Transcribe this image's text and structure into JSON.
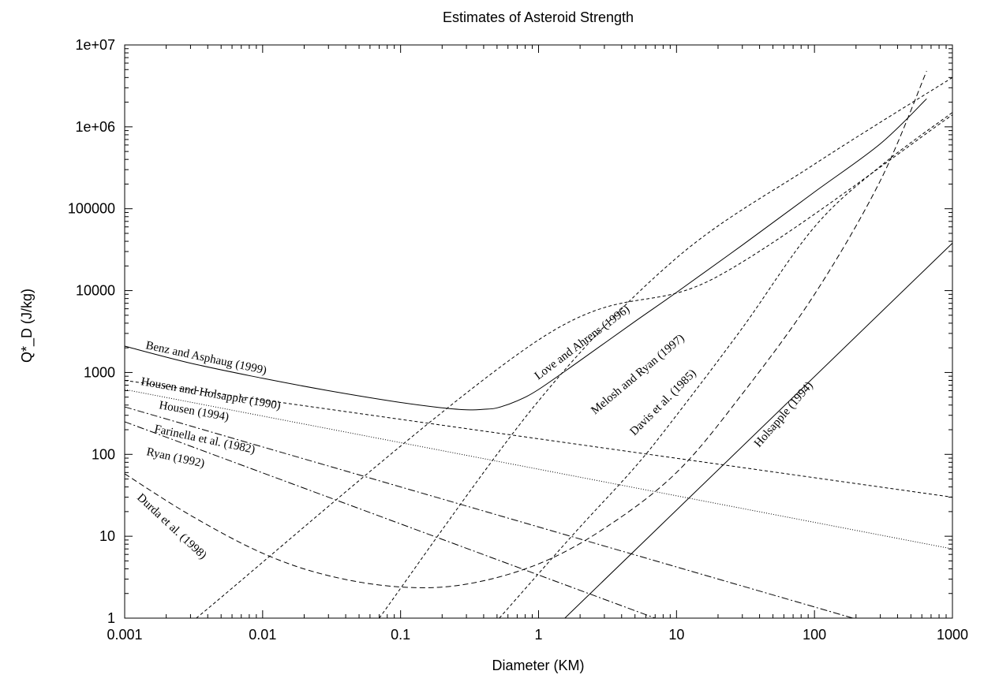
{
  "chart_data": {
    "type": "line",
    "title": "Estimates of Asteroid Strength",
    "xlabel": "Diameter (KM)",
    "ylabel": "Q*_D (J/kg)",
    "xscale": "log",
    "yscale": "log",
    "xlim": [
      0.001,
      1000
    ],
    "ylim": [
      1,
      10000000
    ],
    "x_tick_labels": [
      "0.001",
      "0.01",
      "0.1",
      "1",
      "10",
      "100",
      "1000"
    ],
    "y_tick_labels": [
      "1",
      "10",
      "100",
      "1000",
      "10000",
      "100000",
      "1e+06",
      "1e+07"
    ],
    "grid": false,
    "legend": "none",
    "series": [
      {
        "name": "Benz and Asphaug (1999)",
        "dash": "solid",
        "x": [
          0.001,
          0.003,
          0.01,
          0.03,
          0.1,
          0.2,
          0.3,
          0.4,
          0.5,
          0.7,
          1,
          2,
          5,
          10,
          30,
          100,
          300,
          650
        ],
        "y": [
          2100,
          1300,
          850,
          600,
          430,
          370,
          350,
          355,
          370,
          450,
          620,
          1400,
          4200,
          9500,
          36000,
          160000,
          620000,
          2200000
        ]
      },
      {
        "name": "Housen and Holsapple (1990)",
        "dash": "4,3",
        "x": [
          0.001,
          1000
        ],
        "y": [
          800,
          30
        ]
      },
      {
        "name": "Housen (1994)",
        "dash": "1,2",
        "x": [
          0.001,
          1000
        ],
        "y": [
          620,
          7
        ]
      },
      {
        "name": "Farinella et al. (1982)",
        "dash": "9,3,2,3",
        "x": [
          0.001,
          190
        ],
        "y": [
          380,
          1
        ]
      },
      {
        "name": "Ryan (1992)",
        "dash": "9,3,2,3",
        "x": [
          0.001,
          7
        ],
        "y": [
          250,
          1
        ]
      },
      {
        "name": "Durda et al. (1998)",
        "dash": "7,4",
        "x": [
          0.001,
          0.003,
          0.01,
          0.03,
          0.1,
          0.3,
          1,
          3,
          10,
          30,
          100,
          300,
          650
        ],
        "y": [
          58,
          18,
          6.2,
          3.3,
          2.4,
          2.6,
          4.6,
          12.5,
          60,
          550,
          9000,
          220000,
          4800000
        ]
      },
      {
        "name": "Love and Ahrens (1996)",
        "dash": "4,3",
        "x": [
          0.0033,
          1,
          20,
          1000
        ],
        "y": [
          1,
          2500,
          15000,
          1400000
        ]
      },
      {
        "name": "Melosh and Ryan (1997)",
        "dash": "4,3",
        "x": [
          0.07,
          1,
          10,
          100,
          1000
        ],
        "y": [
          1,
          450,
          25000,
          350000,
          4000000
        ]
      },
      {
        "name": "Davis et al. (1985)",
        "dash": "4,3",
        "x": [
          0.52,
          1,
          2,
          5,
          10,
          30,
          100,
          300,
          1000
        ],
        "y": [
          1,
          3.5,
          13,
          70,
          300,
          3500,
          60000,
          330000,
          1500000
        ]
      },
      {
        "name": "Holsapple (1994)",
        "dash": "solid",
        "x": [
          1.55,
          1000
        ],
        "y": [
          1,
          38000
        ]
      }
    ],
    "annotations": [
      "Benz and Asphaug (1999)",
      "Housen and Holsapple (1990)",
      "Housen (1994)",
      "Farinella et al. (1982)",
      "Ryan (1992)",
      "Durda et al. (1998)",
      "Love and Ahrens (1996)",
      "Melosh and Ryan (1997)",
      "Davis et al. (1985)",
      "Holsapple (1994)"
    ]
  }
}
